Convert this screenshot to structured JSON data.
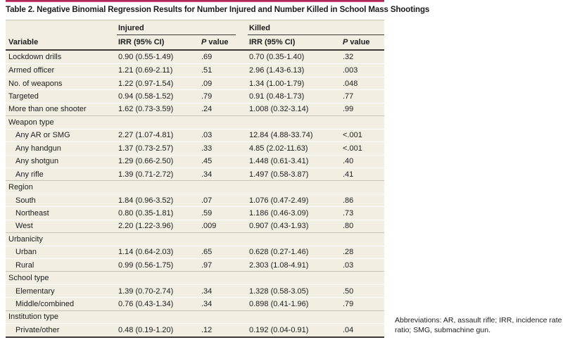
{
  "title": "Table 2. Negative Binomial Regression Results for Number Injured and Number Killed in School Mass Shootings",
  "footnote": "Abbreviations: AR, assault rifle; IRR, incidence rate ratio; SMG, submachine gun.",
  "colors": {
    "accent_bar_top": "#a82455",
    "accent_bar_bottom": "#ea6ca2",
    "row_bg": "#f2efe2",
    "rule_dark": "#3a3936",
    "rule_gray": "#c6c3b7",
    "separator": "#ffffff",
    "text": "#1c1c1c"
  },
  "table": {
    "group_injured": "Injured",
    "group_killed": "Killed",
    "col_variable": "Variable",
    "col_irr": "IRR (95% CI)",
    "col_p_italic": "P",
    "col_p_rest": " value",
    "rows": [
      {
        "type": "item",
        "label": "Lockdown drills",
        "inj_irr": "0.90 (0.55-1.49)",
        "inj_p": ".69",
        "kil_irr": "0.70 (0.35-1.40)",
        "kil_p": ".32"
      },
      {
        "type": "item",
        "label": "Armed officer",
        "inj_irr": "1.21 (0.69-2.11)",
        "inj_p": ".51",
        "kil_irr": "2.96 (1.43-6.13)",
        "kil_p": ".003"
      },
      {
        "type": "item",
        "label": "No. of weapons",
        "inj_irr": "1.22 (0.97-1.54)",
        "inj_p": ".09",
        "kil_irr": "1.34 (1.00-1.79)",
        "kil_p": ".048"
      },
      {
        "type": "item",
        "label": "Targeted",
        "inj_irr": "0.94 (0.58-1.52)",
        "inj_p": ".79",
        "kil_irr": "0.91 (0.48-1.73)",
        "kil_p": ".77"
      },
      {
        "type": "item",
        "label": "More than one shooter",
        "inj_irr": "1.62 (0.73-3.59)",
        "inj_p": ".24",
        "kil_irr": "1.008 (0.32-3.14)",
        "kil_p": ".99"
      },
      {
        "type": "section",
        "label": "Weapon type"
      },
      {
        "type": "sub",
        "label": "Any AR or SMG",
        "inj_irr": "2.27 (1.07-4.81)",
        "inj_p": ".03",
        "kil_irr": "12.84 (4.88-33.74)",
        "kil_p": "<.001"
      },
      {
        "type": "sub",
        "label": "Any handgun",
        "inj_irr": "1.37 (0.73-2.57)",
        "inj_p": ".33",
        "kil_irr": "4.85 (2.02-11.63)",
        "kil_p": "<.001"
      },
      {
        "type": "sub",
        "label": "Any shotgun",
        "inj_irr": "1.29 (0.66-2.50)",
        "inj_p": ".45",
        "kil_irr": "1.448 (0.61-3.41)",
        "kil_p": ".40"
      },
      {
        "type": "sub",
        "label": "Any rifle",
        "inj_irr": "1.39 (0.71-2.72)",
        "inj_p": ".34",
        "kil_irr": "1.497 (0.58-3.87)",
        "kil_p": ".41"
      },
      {
        "type": "section",
        "label": "Region"
      },
      {
        "type": "sub",
        "label": "South",
        "inj_irr": "1.84 (0.96-3.52)",
        "inj_p": ".07",
        "kil_irr": "1.076 (0.47-2.49)",
        "kil_p": ".86"
      },
      {
        "type": "sub",
        "label": "Northeast",
        "inj_irr": "0.80 (0.35-1.81)",
        "inj_p": ".59",
        "kil_irr": "1.186 (0.46-3.09)",
        "kil_p": ".73"
      },
      {
        "type": "sub",
        "label": "West",
        "inj_irr": "2.20 (1.22-3.96)",
        "inj_p": ".009",
        "kil_irr": "0.907 (0.43-1.93)",
        "kil_p": ".80"
      },
      {
        "type": "section",
        "label": "Urbanicity"
      },
      {
        "type": "sub",
        "label": "Urban",
        "inj_irr": "1.14 (0.64-2.03)",
        "inj_p": ".65",
        "kil_irr": "0.628 (0.27-1.46)",
        "kil_p": ".28"
      },
      {
        "type": "sub",
        "label": "Rural",
        "inj_irr": "0.99 (0.56-1.75)",
        "inj_p": ".97",
        "kil_irr": "2.303 (1.08-4.91)",
        "kil_p": ".03"
      },
      {
        "type": "section",
        "label": "School type"
      },
      {
        "type": "sub",
        "label": "Elementary",
        "inj_irr": "1.39 (0.70-2.74)",
        "inj_p": ".34",
        "kil_irr": "1.328 (0.58-3.05)",
        "kil_p": ".50"
      },
      {
        "type": "sub",
        "label": "Middle/combined",
        "inj_irr": "0.76 (0.43-1.34)",
        "inj_p": ".34",
        "kil_irr": "0.898 (0.41-1.96)",
        "kil_p": ".79"
      },
      {
        "type": "section",
        "label": "Institution type"
      },
      {
        "type": "sub",
        "label": "Private/other",
        "inj_irr": "0.48 (0.19-1.20)",
        "inj_p": ".12",
        "kil_irr": "0.192 (0.04-0.91)",
        "kil_p": ".04"
      }
    ]
  }
}
